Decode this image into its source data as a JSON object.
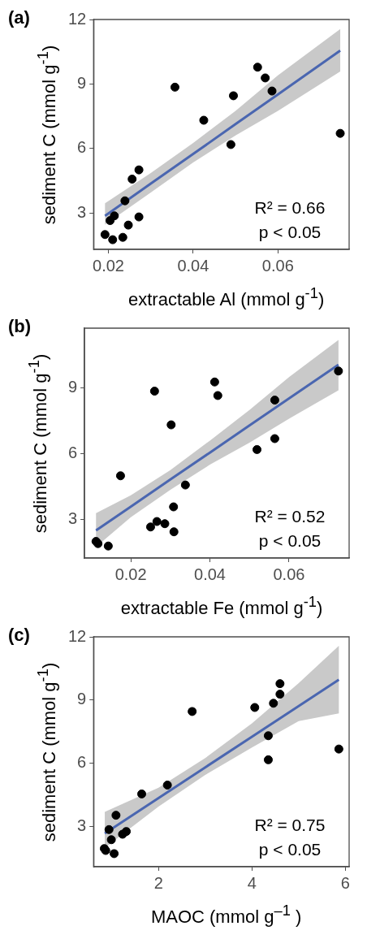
{
  "chart_data": [
    {
      "type": "scatter",
      "title": "(a)",
      "xlabel": "extractable Al (mmol g$^{-1}$)",
      "ylabel": "sediment C (mmol g$^{-1}$)",
      "xlim": [
        0.0165,
        0.0768
      ],
      "ylim": [
        1.3,
        12
      ],
      "xticks": [
        0.02,
        0.04,
        0.06
      ],
      "yticks": [
        3,
        6,
        9,
        12
      ],
      "grid": false,
      "legend": false,
      "annotations": [
        "R² = 0.66",
        "p < 0.05"
      ],
      "series": [
        {
          "marker": "circle",
          "color": "#000000",
          "x": [
            0.0192,
            0.021,
            0.0234,
            0.0204,
            0.0214,
            0.0247,
            0.0272,
            0.0239,
            0.0256,
            0.0272,
            0.0357,
            0.0425,
            0.0489,
            0.0495,
            0.0552,
            0.057,
            0.0586,
            0.0747
          ],
          "values": [
            1.99,
            1.75,
            1.86,
            2.64,
            2.86,
            2.43,
            2.81,
            3.56,
            4.57,
            5.0,
            8.85,
            7.31,
            6.18,
            8.45,
            9.78,
            9.28,
            8.67,
            6.7
          ]
        },
        {
          "type": "line",
          "marker": "none",
          "color": "#4a66b0",
          "x": [
            0.0192,
            0.03,
            0.04,
            0.05,
            0.06,
            0.0747
          ],
          "values": [
            2.86,
            4.36,
            5.74,
            7.13,
            8.51,
            10.55
          ],
          "lower": [
            2.45,
            3.95,
            5.35,
            6.6,
            7.75,
            9.58
          ],
          "upper": [
            3.45,
            4.85,
            6.25,
            7.75,
            9.4,
            11.56
          ]
        }
      ]
    },
    {
      "type": "scatter",
      "title": "(b)",
      "xlabel": "extractable Fe (mmol g$^{-1}$)",
      "ylabel": "sediment C (mmol g$^{-1}$)",
      "xlim": [
        0.0083,
        0.0752
      ],
      "ylim": [
        1.23,
        11.74
      ],
      "xticks": [
        0.02,
        0.04,
        0.06
      ],
      "yticks": [
        3,
        6,
        9
      ],
      "grid": false,
      "legend": false,
      "annotations": [
        "R² = 0.52",
        "p < 0.05"
      ],
      "series": [
        {
          "marker": "circle",
          "color": "#000000",
          "x": [
            0.0112,
            0.0117,
            0.0143,
            0.0174,
            0.025,
            0.0266,
            0.0286,
            0.0309,
            0.0308,
            0.0338,
            0.0302,
            0.026,
            0.0412,
            0.042,
            0.0519,
            0.0564,
            0.0564,
            0.0725
          ],
          "values": [
            1.99,
            1.89,
            1.78,
            4.99,
            2.65,
            2.9,
            2.8,
            2.43,
            3.57,
            4.57,
            7.32,
            8.86,
            9.28,
            8.66,
            6.19,
            6.69,
            8.45,
            9.78
          ]
        },
        {
          "type": "line",
          "marker": "none",
          "color": "#4a66b0",
          "x": [
            0.0112,
            0.02,
            0.03,
            0.04,
            0.05,
            0.06,
            0.0725
          ],
          "values": [
            2.49,
            3.58,
            4.82,
            6.05,
            7.29,
            8.53,
            10.07
          ],
          "lower": [
            1.74,
            3.1,
            4.35,
            5.5,
            6.5,
            7.6,
            8.9
          ],
          "upper": [
            3.28,
            4.1,
            5.25,
            6.6,
            8.0,
            9.5,
            11.2
          ]
        }
      ]
    },
    {
      "type": "scatter",
      "title": "(c)",
      "xlabel": "MAOC (mmol g$^{–1}$ )",
      "ylabel": "sediment C (mmol g$^{-1}$)",
      "xlim": [
        0.61,
        6.08
      ],
      "ylim": [
        1.1,
        12
      ],
      "xticks": [
        2,
        4,
        6
      ],
      "yticks": [
        3,
        6,
        9,
        12
      ],
      "grid": false,
      "legend": false,
      "annotations": [
        "R² = 0.75",
        "p < 0.05"
      ],
      "series": [
        {
          "marker": "circle",
          "color": "#000000",
          "x": [
            0.84,
            0.87,
            1.05,
            0.99,
            0.94,
            1.23,
            1.31,
            1.09,
            1.64,
            2.19,
            2.72,
            4.06,
            4.35,
            4.35,
            4.46,
            4.6,
            4.6,
            5.86
          ],
          "values": [
            1.96,
            1.87,
            1.72,
            2.38,
            2.86,
            2.64,
            2.77,
            3.54,
            4.55,
            4.97,
            8.46,
            8.65,
            6.17,
            7.31,
            8.85,
            9.28,
            9.78,
            6.68
          ]
        },
        {
          "type": "line",
          "marker": "none",
          "color": "#4a66b0",
          "x": [
            0.85,
            2,
            3,
            4,
            5,
            5.86
          ],
          "values": [
            2.68,
            4.35,
            5.81,
            7.26,
            8.72,
            9.97
          ],
          "lower": [
            2.0,
            3.95,
            5.45,
            6.75,
            8.0,
            8.37
          ],
          "upper": [
            3.7,
            4.85,
            6.25,
            7.9,
            9.8,
            11.58
          ]
        }
      ]
    }
  ]
}
